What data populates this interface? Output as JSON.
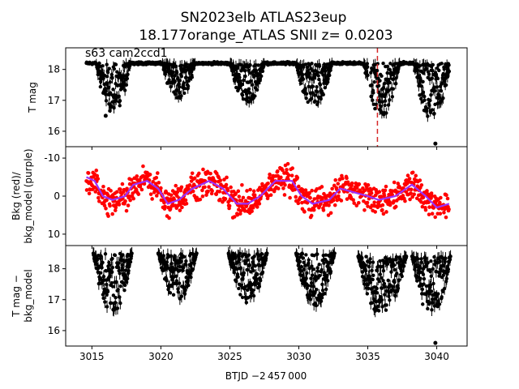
{
  "chart_data": {
    "title_line1": "SN2023elb  ATLAS23eup",
    "title_line2": "18.177orange_ATLAS SNII z= 0.0203",
    "annotation": "s63 cam2ccd1",
    "xlabel": "BTJD −2 457 000",
    "x_ticks": [
      3015,
      3020,
      3025,
      3030,
      3035,
      3040
    ],
    "xlim": [
      3013.1,
      3042.2
    ],
    "marker_x": 3035.7,
    "marker_color": "#d62728",
    "panels": [
      {
        "id": "tmag",
        "type": "scatter",
        "ylabel": "T mag",
        "inverted": true,
        "ylim": [
          18.7,
          15.5
        ],
        "y_ticks": [
          16,
          17,
          18
        ],
        "color": "#000000",
        "baseline": 18.2,
        "envelopes": [
          {
            "x0": 3015.3,
            "x1": 3017.8,
            "peak": 16.6
          },
          {
            "x0": 3020.1,
            "x1": 3022.5,
            "peak": 17.0
          },
          {
            "x0": 3025.0,
            "x1": 3027.5,
            "peak": 16.9
          },
          {
            "x0": 3029.8,
            "x1": 3032.4,
            "peak": 16.8
          },
          {
            "x0": 3034.7,
            "x1": 3037.3,
            "peak": 16.5
          },
          {
            "x0": 3038.3,
            "x1": 3041.0,
            "peak": 16.4
          }
        ],
        "outliers": [
          {
            "x": 3016.0,
            "y": 16.5
          },
          {
            "x": 3039.9,
            "y": 15.6
          },
          {
            "x": 3040.8,
            "y": 18.0
          }
        ]
      },
      {
        "id": "bkg",
        "type": "scatter",
        "ylabel_line1": "Bkg (red)/",
        "ylabel_line2": "bkg_model (purple)",
        "ylim": [
          -13,
          13
        ],
        "y_ticks": [
          -10,
          0,
          10
        ],
        "scatter_color": "#ff0000",
        "model_color": "#9b30ff",
        "model_curve": [
          {
            "x": 3014.6,
            "y": -5
          },
          {
            "x": 3015.2,
            "y": -4
          },
          {
            "x": 3015.8,
            "y": 0
          },
          {
            "x": 3016.5,
            "y": 1
          },
          {
            "x": 3017.4,
            "y": 0
          },
          {
            "x": 3018.0,
            "y": -3
          },
          {
            "x": 3019.0,
            "y": -4
          },
          {
            "x": 3019.8,
            "y": -2
          },
          {
            "x": 3020.5,
            "y": 2
          },
          {
            "x": 3021.3,
            "y": 1
          },
          {
            "x": 3022.3,
            "y": -2
          },
          {
            "x": 3023.5,
            "y": -4
          },
          {
            "x": 3024.5,
            "y": -2
          },
          {
            "x": 3025.5,
            "y": 2
          },
          {
            "x": 3026.3,
            "y": 2
          },
          {
            "x": 3027.2,
            "y": 0
          },
          {
            "x": 3028.3,
            "y": -4
          },
          {
            "x": 3029.5,
            "y": -4
          },
          {
            "x": 3030.2,
            "y": 0
          },
          {
            "x": 3031.0,
            "y": 2
          },
          {
            "x": 3032.2,
            "y": 1
          },
          {
            "x": 3033.0,
            "y": -2
          },
          {
            "x": 3034.0,
            "y": -1
          },
          {
            "x": 3035.0,
            "y": 0
          },
          {
            "x": 3035.8,
            "y": 1
          },
          {
            "x": 3037.0,
            "y": 0
          },
          {
            "x": 3038.2,
            "y": -3
          },
          {
            "x": 3039.2,
            "y": 0
          },
          {
            "x": 3040.0,
            "y": 3
          },
          {
            "x": 3040.9,
            "y": 2
          }
        ]
      },
      {
        "id": "tmag_corr",
        "type": "scatter",
        "ylabel_line1": "T mag −",
        "ylabel_line2": "bkg_model",
        "inverted": true,
        "ylim": [
          18.75,
          15.5
        ],
        "y_ticks": [
          16,
          17,
          18
        ],
        "color": "#000000",
        "envelopes": [
          {
            "x0": 3015.1,
            "x1": 3017.9,
            "peak": 16.6,
            "floor": 18.5
          },
          {
            "x0": 3019.8,
            "x1": 3022.6,
            "peak": 17.0,
            "floor": 18.5
          },
          {
            "x0": 3024.9,
            "x1": 3027.7,
            "peak": 16.9,
            "floor": 18.5
          },
          {
            "x0": 3029.8,
            "x1": 3032.6,
            "peak": 16.8,
            "floor": 18.5
          },
          {
            "x0": 3034.3,
            "x1": 3037.8,
            "peak": 16.5,
            "floor": 18.4
          },
          {
            "x0": 3038.2,
            "x1": 3041.0,
            "peak": 16.5,
            "floor": 18.4
          }
        ],
        "outliers": [
          {
            "x": 3039.9,
            "y": 15.6
          }
        ]
      }
    ]
  }
}
